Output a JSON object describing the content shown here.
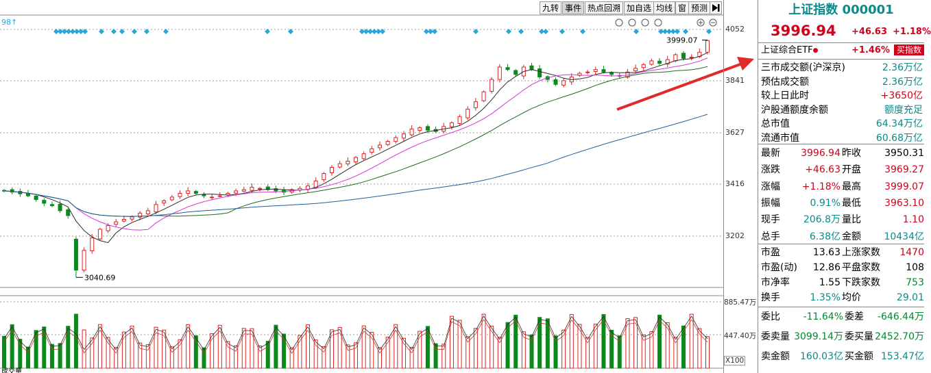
{
  "toolbar": {
    "buttons": [
      "九转",
      "事件",
      "热点回溯",
      "加自选",
      "均线",
      "窗",
      "预测"
    ],
    "active": "事件",
    "end_icon": "play-end-icon"
  },
  "chart": {
    "top_left_label": "98↑",
    "y_ticks": [
      "4052",
      "3841",
      "3627",
      "3416",
      "3202"
    ],
    "high_label": "3999.07",
    "low_label": "3040.69",
    "volume_ticks": [
      "885.47万",
      "447.40万"
    ],
    "volume_unit": "X100",
    "bottom_label": "成交量",
    "colors": {
      "up": "#e02020",
      "down": "#0a8a1a",
      "ma5": "#2a2a2a",
      "ma10": "#d633d6",
      "ma20": "#1c6b1c",
      "ma60": "#1a5fa0",
      "event": "#2aa7d8",
      "arrow": "#e02a2a"
    }
  },
  "chart_data": {
    "type": "candlestick",
    "title": "",
    "y_range": [
      3000,
      4100
    ],
    "high": 3999.07,
    "low": 3040.69,
    "close_series": [
      3390,
      3385,
      3378,
      3370,
      3355,
      3340,
      3330,
      3310,
      3290,
      3070,
      3150,
      3200,
      3235,
      3250,
      3265,
      3275,
      3285,
      3300,
      3310,
      3335,
      3350,
      3365,
      3380,
      3390,
      3380,
      3370,
      3365,
      3370,
      3380,
      3390,
      3395,
      3405,
      3400,
      3395,
      3390,
      3385,
      3395,
      3400,
      3410,
      3430,
      3460,
      3485,
      3500,
      3510,
      3525,
      3540,
      3560,
      3575,
      3590,
      3605,
      3620,
      3640,
      3645,
      3635,
      3630,
      3650,
      3665,
      3690,
      3720,
      3750,
      3790,
      3840,
      3890,
      3880,
      3860,
      3890,
      3880,
      3850,
      3840,
      3820,
      3835,
      3850,
      3865,
      3870,
      3880,
      3870,
      3860,
      3855,
      3870,
      3885,
      3900,
      3915,
      3905,
      3920,
      3940,
      3925,
      3930,
      3950,
      3996.94
    ],
    "ma_names": [],
    "volume_high": "885.47万",
    "volume_mid": "447.40万"
  },
  "panel": {
    "title": "上证指数 000001",
    "price": "3996.94",
    "change": "+46.63",
    "pct": "+1.18%",
    "etf": {
      "name": "上证综合ETF",
      "pct": "+1.46%",
      "button": "买指数"
    },
    "rows1": [
      {
        "label": "三市成交额(沪深京)",
        "value": "2.36万亿",
        "color": "teal"
      },
      {
        "label": "预估成交额",
        "value": "2.36万亿",
        "color": "teal"
      },
      {
        "label": "较上日此时",
        "value": "+3650亿",
        "color": "red"
      },
      {
        "label": "沪股通额度余额",
        "value": "额度充足",
        "color": "teal"
      },
      {
        "label": "总市值",
        "value": "64.34万亿",
        "color": "teal"
      },
      {
        "label": "流通市值",
        "value": "60.68万亿",
        "color": "teal"
      }
    ],
    "rows2": [
      {
        "l1": "最新",
        "v1": "3996.94",
        "c1": "red",
        "l2": "昨收",
        "v2": "3950.31",
        "c2": "black"
      },
      {
        "l1": "涨跌",
        "v1": "+46.63",
        "c1": "red",
        "l2": "开盘",
        "v2": "3969.27",
        "c2": "red"
      },
      {
        "l1": "涨幅",
        "v1": "+1.18%",
        "c1": "red",
        "l2": "最高",
        "v2": "3999.07",
        "c2": "red"
      },
      {
        "l1": "振幅",
        "v1": "0.91%",
        "c1": "teal",
        "l2": "最低",
        "v2": "3963.10",
        "c2": "red"
      },
      {
        "l1": "现手",
        "v1": "206.8万",
        "c1": "teal",
        "l2": "量比",
        "v2": "1.10",
        "c2": "red"
      },
      {
        "l1": "总手",
        "v1": "6.38亿",
        "c1": "teal",
        "l2": "金额",
        "v2": "10434亿",
        "c2": "teal"
      }
    ],
    "rows3": [
      {
        "l1": "市盈",
        "v1": "13.63",
        "c1": "black",
        "l2": "上涨家数",
        "v2": "1470",
        "c2": "red"
      },
      {
        "l1": "市盈(动)",
        "v1": "12.86",
        "c1": "black",
        "l2": "平盘家数",
        "v2": "108",
        "c2": "black"
      },
      {
        "l1": "市净率",
        "v1": "1.55",
        "c1": "black",
        "l2": "下跌家数",
        "v2": "753",
        "c2": "green"
      },
      {
        "l1": "换手",
        "v1": "1.35%",
        "c1": "teal",
        "l2": "均价",
        "v2": "29.01",
        "c2": "teal"
      }
    ],
    "rows4": [
      {
        "l1": "委比",
        "v1": "-11.64%",
        "c1": "green",
        "l2": "委差",
        "v2": "-646.44万",
        "c2": "green"
      },
      {
        "l1": "委卖量",
        "v1": "3099.14万",
        "c1": "green",
        "l2": "委买量",
        "v2": "2452.70万",
        "c2": "green"
      },
      {
        "l1": "卖金额",
        "v1": "160.03亿",
        "c1": "teal",
        "l2": "买金额",
        "v2": "153.47亿",
        "c2": "teal"
      }
    ]
  }
}
